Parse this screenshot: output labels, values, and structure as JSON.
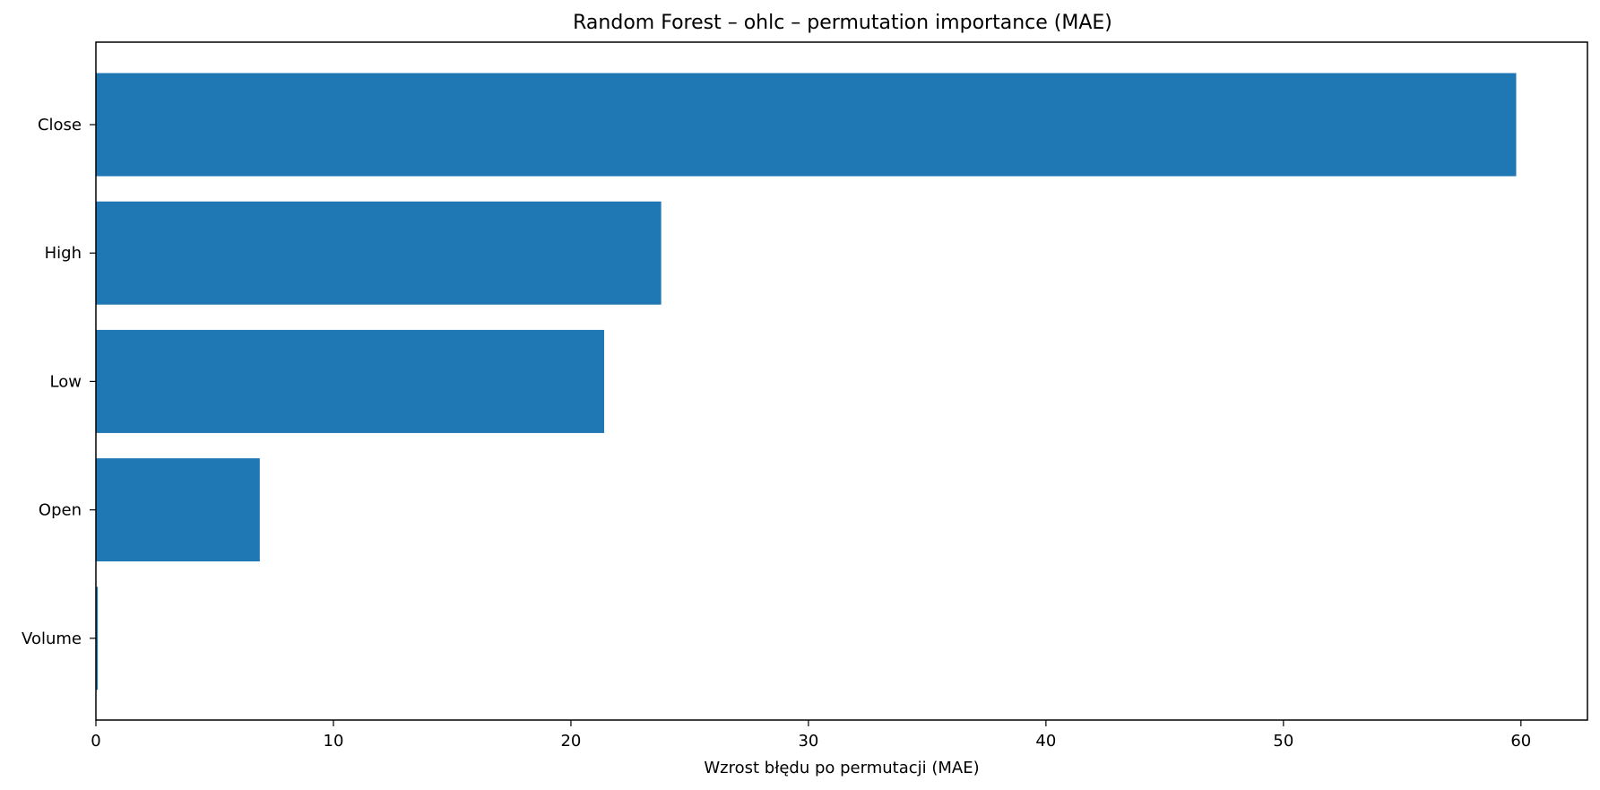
{
  "chart_data": {
    "type": "bar",
    "orientation": "horizontal",
    "title": "Random Forest – ohlc – permutation importance (MAE)",
    "xlabel": "Wzrost błędu po permutacji (MAE)",
    "ylabel": "",
    "categories": [
      "Close",
      "High",
      "Low",
      "Open",
      "Volume"
    ],
    "values": [
      59.8,
      23.8,
      21.4,
      6.9,
      0.08
    ],
    "xlim": [
      0,
      62.8
    ],
    "xticks": [
      0,
      10,
      20,
      30,
      40,
      50,
      60
    ],
    "grid": false,
    "bar_color": "#1f77b4"
  }
}
